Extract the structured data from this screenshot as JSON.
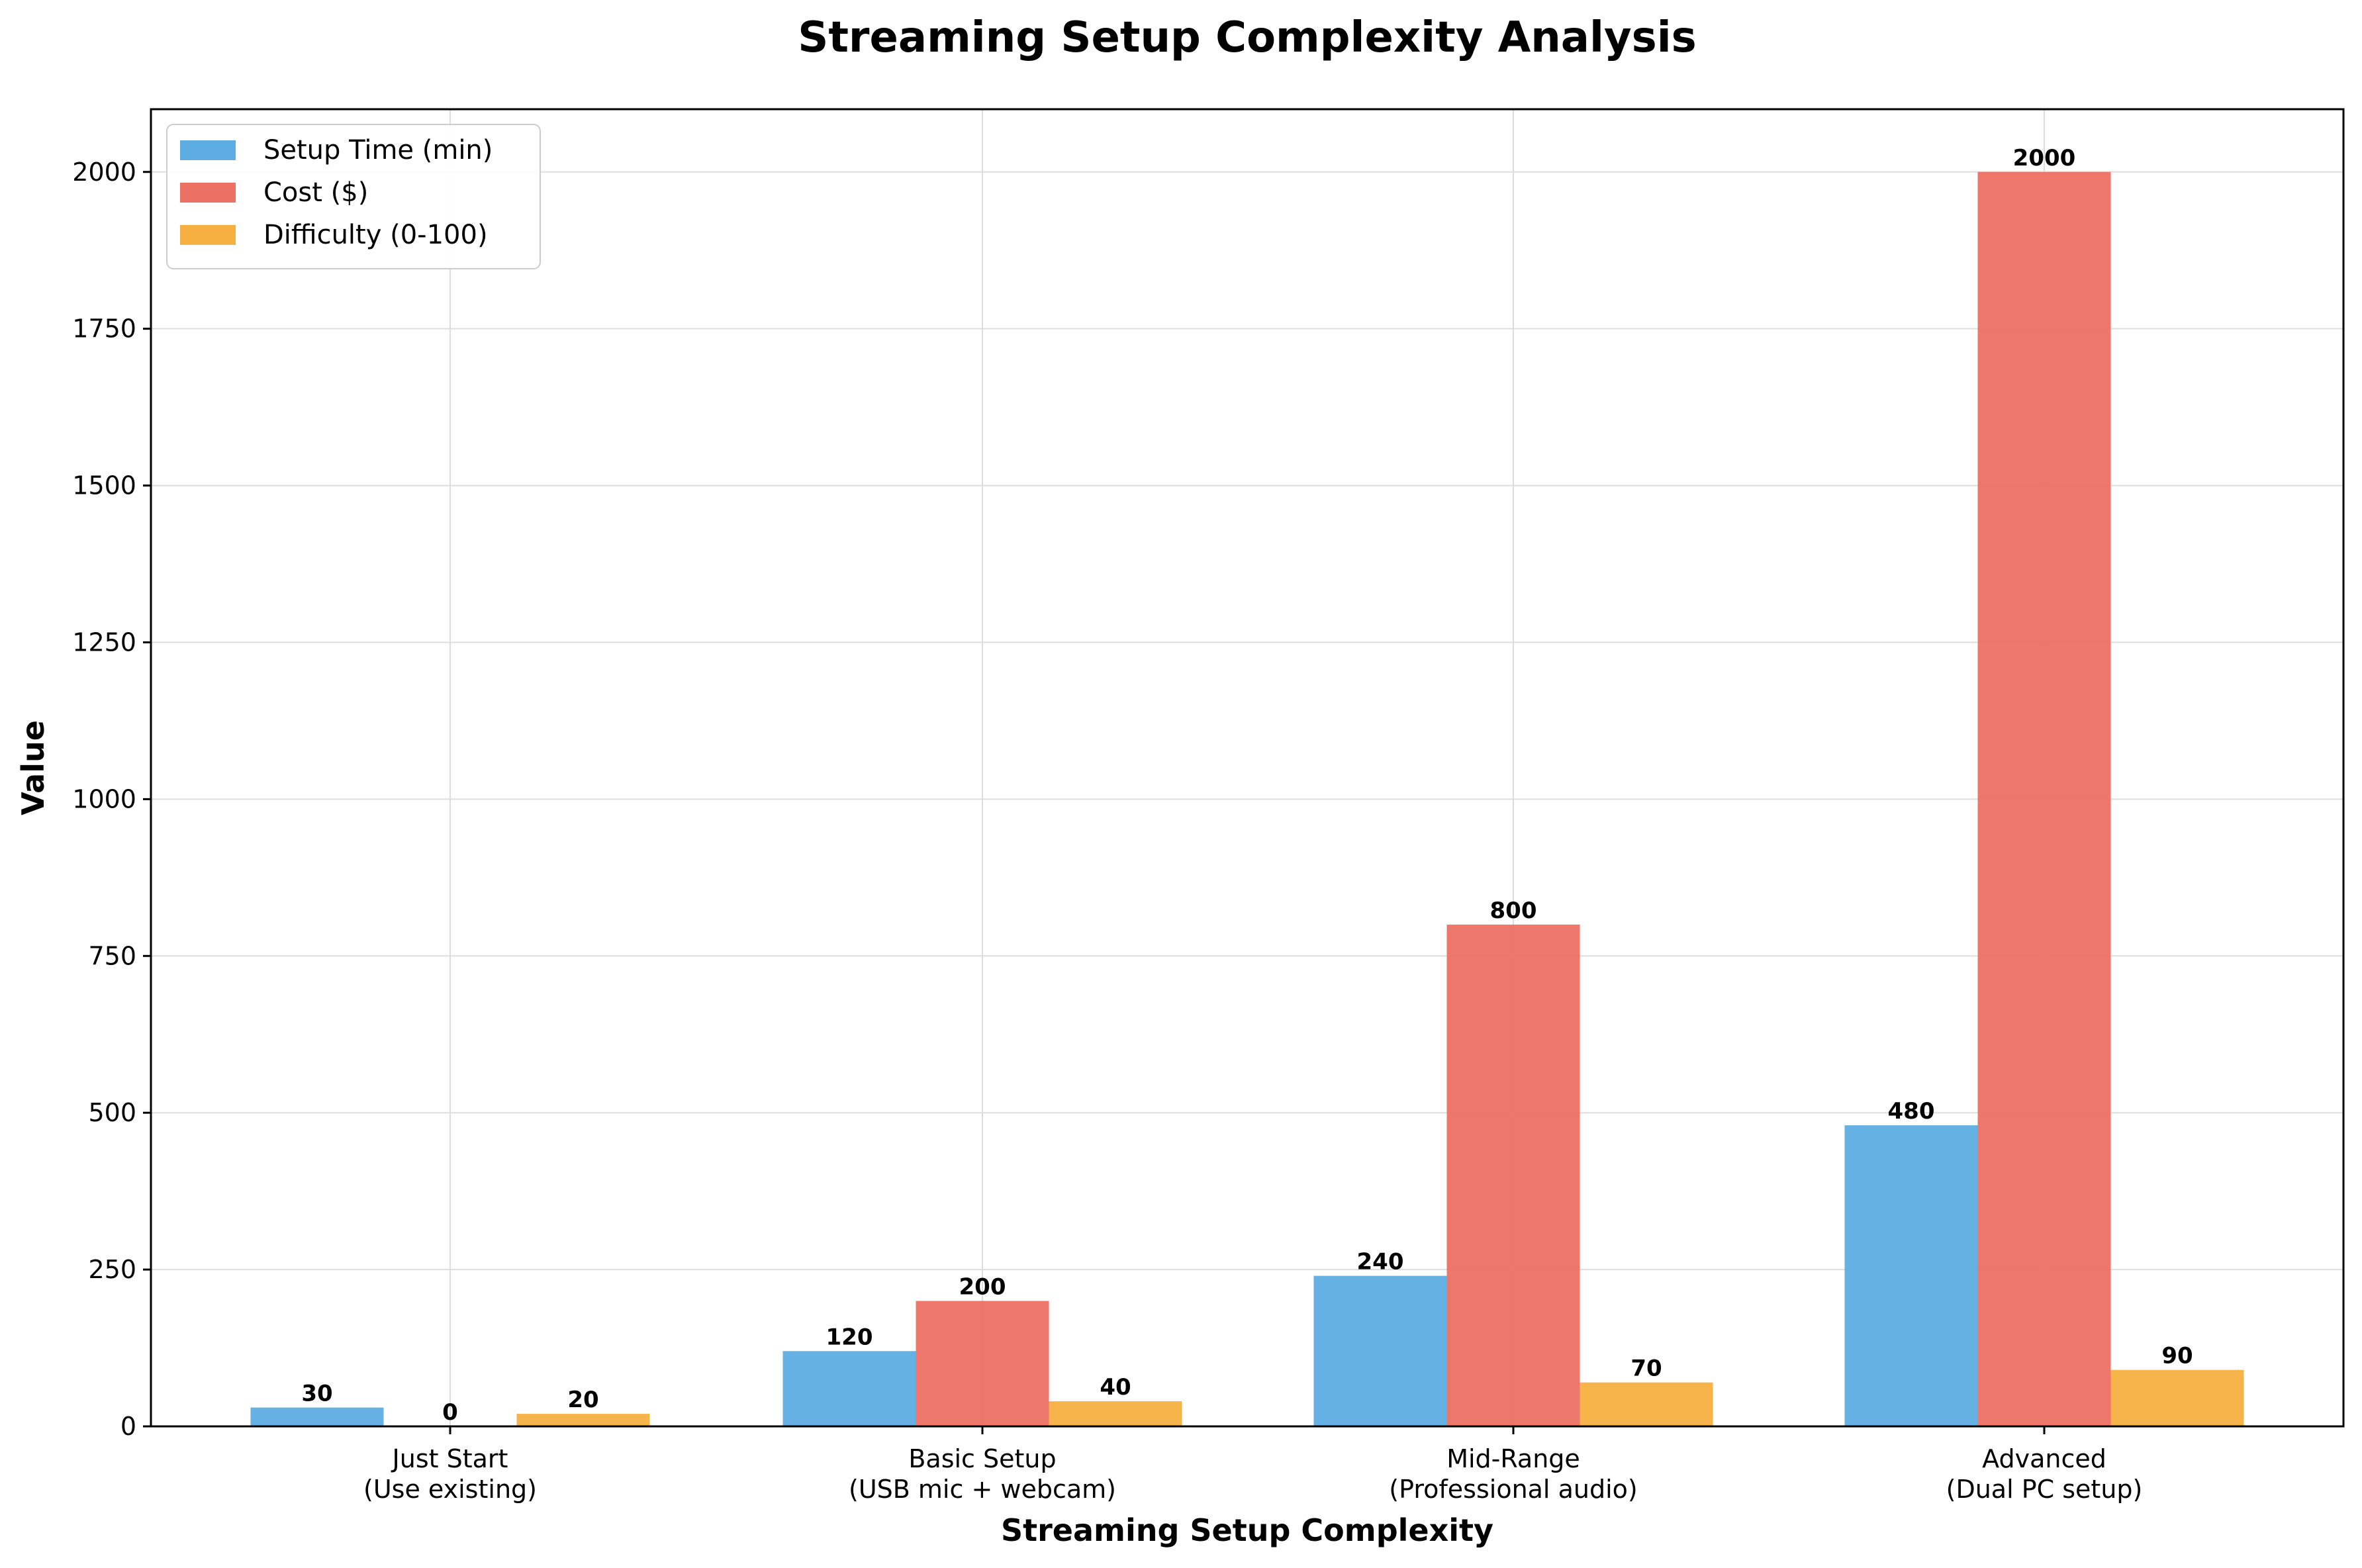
{
  "chart_data": {
    "type": "bar",
    "title": "Streaming Setup Complexity Analysis",
    "xlabel": "Streaming Setup Complexity",
    "ylabel": "Value",
    "categories": [
      [
        "Just Start",
        "(Use existing)"
      ],
      [
        "Basic Setup",
        "(USB mic + webcam)"
      ],
      [
        "Mid-Range",
        "(Professional audio)"
      ],
      [
        "Advanced",
        "(Dual PC setup)"
      ]
    ],
    "series": [
      {
        "name": "Setup Time (min)",
        "color": "#5DADE2",
        "values": [
          30,
          120,
          240,
          480
        ]
      },
      {
        "name": "Cost ($)",
        "color": "#EC7063",
        "values": [
          0,
          200,
          800,
          2000
        ]
      },
      {
        "name": "Difficulty (0-100)",
        "color": "#F5B041",
        "values": [
          20,
          40,
          70,
          90
        ]
      }
    ],
    "ylim": [
      0,
      2100
    ],
    "yticks": [
      0,
      250,
      500,
      750,
      1000,
      1250,
      1500,
      1750,
      2000
    ],
    "grid": true,
    "legend": "top-left"
  }
}
